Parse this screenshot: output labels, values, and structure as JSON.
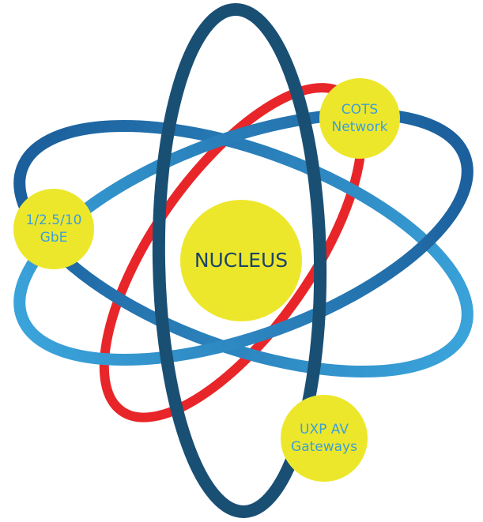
{
  "nucleus": "NUCLEUS",
  "nodes": [
    {
      "lines": [
        "COTS",
        "Network"
      ]
    },
    {
      "lines": [
        "1/2.5/10",
        "GbE"
      ]
    },
    {
      "lines": [
        "UXP AV",
        "Gateways"
      ]
    }
  ]
}
